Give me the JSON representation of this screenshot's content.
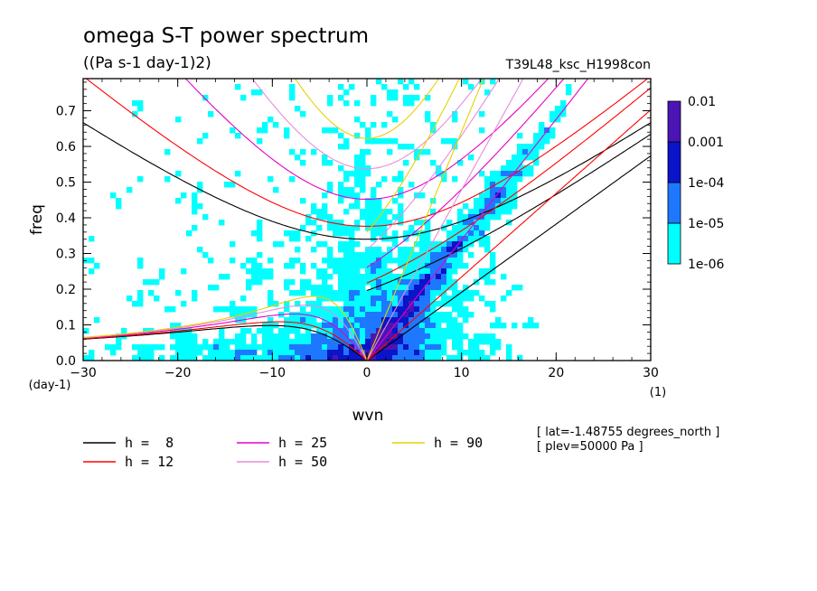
{
  "chart_data": {
    "type": "heatmap",
    "title": "omega S-T power spectrum",
    "subtitle": "((Pa s-1 day-1)2)",
    "run_label": "T39L48_ksc_H1998con",
    "xlabel": "wvn",
    "ylabel": "freq",
    "x_unit": "(1)",
    "y_unit": "(day-1)",
    "xlim": [
      -30,
      30
    ],
    "ylim": [
      0,
      0.79
    ],
    "x_ticks": [
      -30,
      -20,
      -10,
      0,
      10,
      20,
      30
    ],
    "y_ticks": [
      0.0,
      0.1,
      0.2,
      0.3,
      0.4,
      0.5,
      0.6,
      0.7
    ],
    "x_tick_labels": [
      "−30",
      "−20",
      "−10",
      "0",
      "10",
      "20",
      "30"
    ],
    "y_tick_labels": [
      "0.0",
      "0.1",
      "0.2",
      "0.3",
      "0.4",
      "0.5",
      "0.6",
      "0.7"
    ],
    "colorbar": {
      "levels": [
        "1e-06",
        "1e-05",
        "1e-04",
        "0.001",
        "0.01"
      ],
      "colors": [
        "#00ffff",
        "#1e78ff",
        "#0a14c8",
        "#4b14b4"
      ]
    },
    "series": [
      {
        "name": "h =  8",
        "color": "#000000",
        "h": 8
      },
      {
        "name": "h = 12",
        "color": "#ff0000",
        "h": 12
      },
      {
        "name": "h = 25",
        "color": "#e600c8",
        "h": 25
      },
      {
        "name": "h = 50",
        "color": "#e68cdc",
        "h": 50
      },
      {
        "name": "h = 90",
        "color": "#e6d200",
        "h": 90
      }
    ],
    "annotations": [
      "[ lat=-1.48755 degrees_north ]",
      "[ plev=50000 Pa ]"
    ]
  }
}
